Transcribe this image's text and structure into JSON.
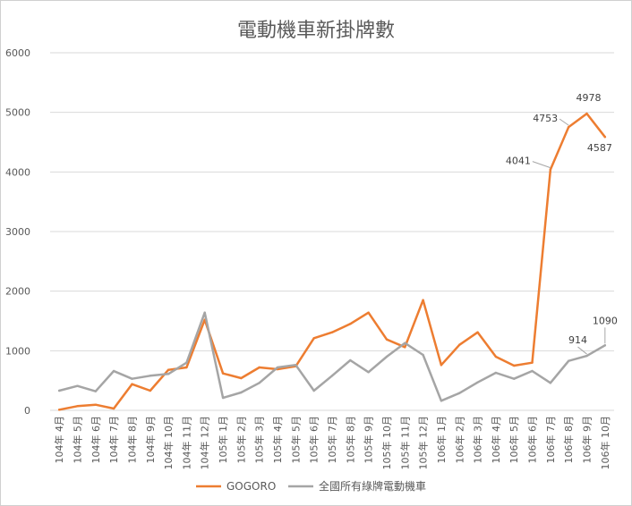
{
  "chart_data": {
    "type": "line",
    "title": "電動機車新掛牌數",
    "xlabel": "",
    "ylabel": "",
    "ylim": [
      0,
      6000
    ],
    "yticks": [
      0,
      1000,
      2000,
      3000,
      4000,
      5000,
      6000
    ],
    "grid": "horizontal",
    "legend_position": "bottom",
    "categories": [
      "104年 4月",
      "104年 5月",
      "104年 6月",
      "104年 7月",
      "104年 8月",
      "104年 9月",
      "104年 10月",
      "104年 11月",
      "104年 12月",
      "105年 1月",
      "105年 2月",
      "105年 3月",
      "105年 4月",
      "105年 5月",
      "105年 6月",
      "105年 7月",
      "105年 8月",
      "105年 9月",
      "105年 10月",
      "105年 11月",
      "105年 12月",
      "106年 1月",
      "106年 2月",
      "106年 3月",
      "106年 4月",
      "106年 5月",
      "106年 6月",
      "106年 7月",
      "106年 8月",
      "106年 9月",
      "106年 10月"
    ],
    "series": [
      {
        "name": "GOGORO",
        "color": "#ED7D31",
        "values": [
          10,
          70,
          95,
          30,
          440,
          330,
          680,
          720,
          1520,
          620,
          540,
          720,
          690,
          740,
          1210,
          1310,
          1450,
          1640,
          1190,
          1060,
          1850,
          760,
          1100,
          1310,
          900,
          750,
          800,
          4041,
          4753,
          4978,
          4587
        ],
        "data_labels": {
          "27": "4041",
          "28": "4753",
          "29": "4978",
          "30": "4587"
        }
      },
      {
        "name": "全國所有綠牌電動機車",
        "color": "#A5A5A5",
        "values": [
          330,
          410,
          320,
          660,
          530,
          580,
          610,
          800,
          1640,
          210,
          300,
          460,
          720,
          760,
          330,
          580,
          840,
          640,
          900,
          1130,
          930,
          160,
          290,
          470,
          630,
          530,
          660,
          460,
          830,
          914,
          1090
        ],
        "data_labels": {
          "29": "914",
          "30": "1090"
        }
      }
    ]
  }
}
